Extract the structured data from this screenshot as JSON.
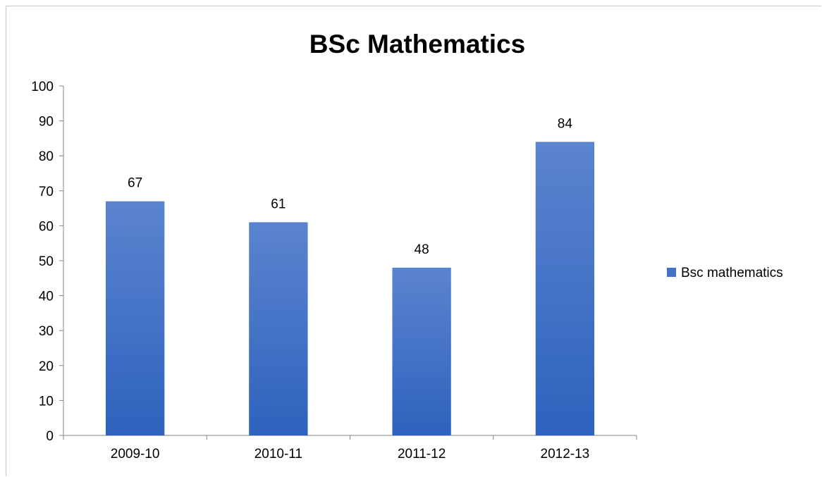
{
  "chart_data": {
    "type": "bar",
    "title": "BSc Mathematics",
    "xlabel": "",
    "ylabel": "",
    "categories": [
      "2009-10",
      "2010-11",
      "2011-12",
      "2012-13"
    ],
    "series": [
      {
        "name": "Bsc mathematics",
        "values": [
          67,
          61,
          48,
          84
        ],
        "color": "#4472c4"
      }
    ],
    "ylim": [
      0,
      100
    ],
    "yticks": [
      0,
      10,
      20,
      30,
      40,
      50,
      60,
      70,
      80,
      90,
      100
    ],
    "data_labels": true,
    "grid": false,
    "legend_position": "right"
  }
}
